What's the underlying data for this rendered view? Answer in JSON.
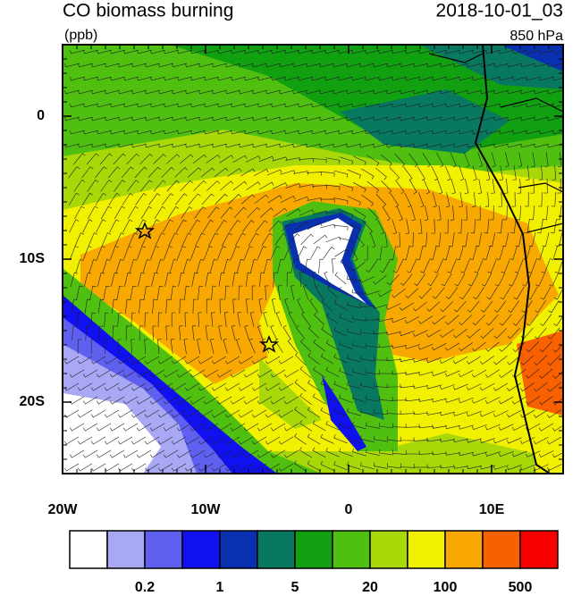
{
  "header": {
    "title": "CO biomass burning",
    "units": "(ppb)",
    "date": "2018-10-01_03",
    "level": "850 hPa"
  },
  "map": {
    "xlim": [
      -20,
      15
    ],
    "ylim": [
      -25,
      5
    ],
    "xticks": [
      {
        "value": -20,
        "label": "20W"
      },
      {
        "value": -10,
        "label": "10W"
      },
      {
        "value": 0,
        "label": "0"
      },
      {
        "value": 10,
        "label": "10E"
      }
    ],
    "yticks": [
      {
        "value": 0,
        "label": "0"
      },
      {
        "value": -10,
        "label": "10S"
      },
      {
        "value": -20,
        "label": "20S"
      }
    ]
  },
  "colorbar": {
    "colors": [
      "#ffffff",
      "#a8a8f4",
      "#6060f0",
      "#1010f0",
      "#0830b0",
      "#087860",
      "#10a010",
      "#50c010",
      "#a8d808",
      "#f0f000",
      "#f8a800",
      "#f86000",
      "#f80000"
    ],
    "labels": [
      "0.2",
      "1",
      "5",
      "20",
      "100",
      "500"
    ]
  }
}
